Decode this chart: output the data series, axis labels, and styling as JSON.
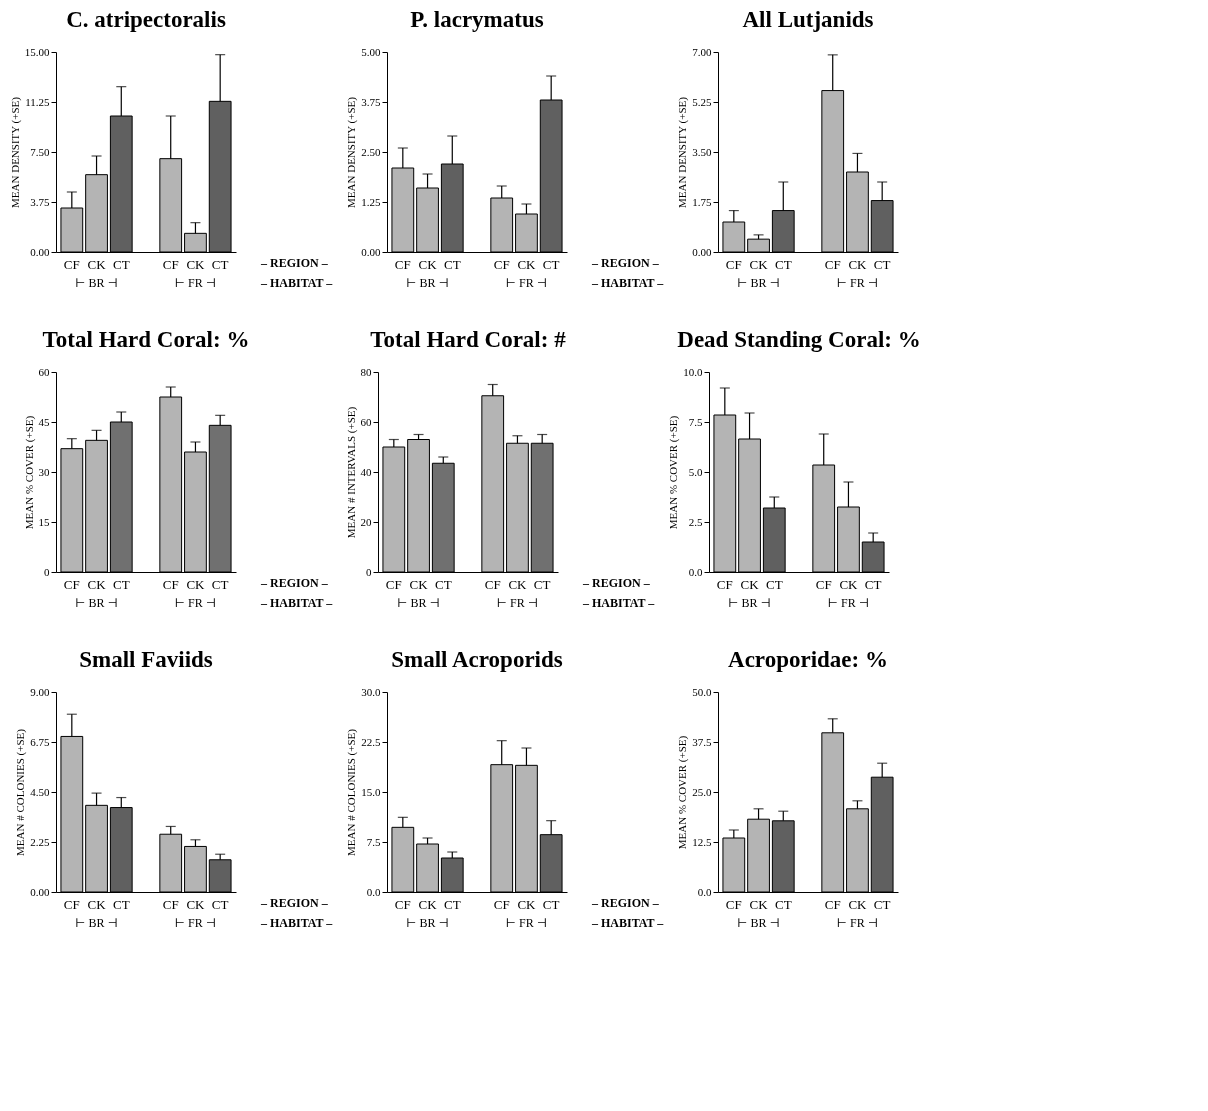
{
  "chart_data": [
    {
      "type": "bar",
      "title": "C. atripectoralis",
      "ylabel": "MEAN DENSITY (+SE)",
      "categories": [
        "CF",
        "CK",
        "CT",
        "CF",
        "CK",
        "CT"
      ],
      "values": [
        3.3,
        5.8,
        10.2,
        7.0,
        1.4,
        11.3
      ],
      "colors": [
        "#b4b4b4",
        "#b4b4b4",
        "#606060",
        "#b4b4b4",
        "#b4b4b4",
        "#606060"
      ],
      "errors": [
        [
          3.3,
          4.5
        ],
        [
          5.8,
          7.2
        ],
        [
          10.2,
          12.4
        ],
        [
          7.0,
          10.2
        ],
        [
          1.4,
          2.2
        ],
        [
          11.3,
          14.8
        ]
      ],
      "ylim": [
        0,
        15
      ],
      "yticks": [
        {
          "value": 0,
          "label": "0.00"
        },
        3.75,
        {
          "value": 7.5,
          "label": "7.50"
        },
        11.25,
        {
          "value": 15,
          "label": "15.00"
        }
      ],
      "annotations": [
        "⊢ BR ⊣",
        "⊢ FR ⊣",
        "– REGION –",
        "– HABITAT –"
      ]
    },
    {
      "type": "bar",
      "title": "P. lacrymatus",
      "ylabel": "MEAN DENSITY (+SE)",
      "categories": [
        "CF",
        "CK",
        "CT",
        "CF",
        "CK",
        "CT"
      ],
      "values": [
        2.1,
        1.6,
        2.2,
        1.35,
        0.95,
        3.8
      ],
      "colors": [
        "#b4b4b4",
        "#b4b4b4",
        "#606060",
        "#b4b4b4",
        "#b4b4b4",
        "#606060"
      ],
      "errors": [
        [
          2.1,
          2.6
        ],
        [
          1.6,
          1.95
        ],
        [
          2.2,
          2.9
        ],
        [
          1.35,
          1.65
        ],
        [
          0.95,
          1.2
        ],
        [
          3.8,
          4.4
        ]
      ],
      "ylim": [
        0,
        5
      ],
      "yticks": [
        {
          "value": 0,
          "label": "0.00"
        },
        1.25,
        {
          "value": 2.5,
          "label": "2.50"
        },
        3.75,
        {
          "value": 5,
          "label": "5.00"
        }
      ],
      "annotations": [
        "⊢ BR ⊣",
        "⊢ FR ⊣",
        "– REGION –",
        "– HABITAT –"
      ]
    },
    {
      "type": "bar",
      "title": "All Lutjanids",
      "ylabel": "MEAN DENSITY (+SE)",
      "categories": [
        "CF",
        "CK",
        "CT",
        "CF",
        "CK",
        "CT"
      ],
      "values": [
        1.05,
        0.45,
        1.45,
        5.65,
        2.8,
        1.8
      ],
      "colors": [
        "#b4b4b4",
        "#b4b4b4",
        "#606060",
        "#b4b4b4",
        "#b4b4b4",
        "#606060"
      ],
      "errors": [
        [
          1.05,
          1.45
        ],
        [
          0.45,
          0.6
        ],
        [
          1.45,
          2.45
        ],
        [
          5.65,
          6.9
        ],
        [
          2.8,
          3.45
        ],
        [
          1.8,
          2.45
        ]
      ],
      "ylim": [
        0,
        7
      ],
      "yticks": [
        {
          "value": 0,
          "label": "0.00"
        },
        1.75,
        {
          "value": 3.5,
          "label": "3.50"
        },
        5.25,
        {
          "value": 7,
          "label": "7.00"
        }
      ],
      "annotations": [
        "⊢ BR ⊣",
        "⊢ FR ⊣"
      ]
    },
    {
      "type": "bar",
      "title": "Total Hard Coral: %",
      "ylabel": "MEAN % COVER (+SE)",
      "categories": [
        "CF",
        "CK",
        "CT",
        "CF",
        "CK",
        "CT"
      ],
      "values": [
        37,
        39.5,
        45,
        52.5,
        36,
        44
      ],
      "colors": [
        "#b4b4b4",
        "#b4b4b4",
        "#707070",
        "#b4b4b4",
        "#b4b4b4",
        "#707070"
      ],
      "errors": [
        [
          37,
          40
        ],
        [
          39.5,
          42.5
        ],
        [
          45,
          48
        ],
        [
          52.5,
          55.5
        ],
        [
          36,
          39
        ],
        [
          44,
          47
        ]
      ],
      "ylim": [
        0,
        60
      ],
      "yticks": [
        0,
        15,
        30,
        45,
        60
      ],
      "annotations": [
        "⊢ BR ⊣",
        "⊢ FR ⊣",
        "– REGION –",
        "– HABITAT –"
      ]
    },
    {
      "type": "bar",
      "title": "Total Hard Coral: #",
      "ylabel": "MEAN # INTERVALS (+SE)",
      "categories": [
        "CF",
        "CK",
        "CT",
        "CF",
        "CK",
        "CT"
      ],
      "values": [
        50,
        53,
        43.5,
        70.5,
        51.5,
        51.5
      ],
      "colors": [
        "#b4b4b4",
        "#b4b4b4",
        "#707070",
        "#b4b4b4",
        "#b4b4b4",
        "#707070"
      ],
      "errors": [
        [
          50,
          53
        ],
        [
          53,
          55
        ],
        [
          43.5,
          46
        ],
        [
          70.5,
          75
        ],
        [
          51.5,
          54.5
        ],
        [
          51.5,
          55
        ]
      ],
      "ylim": [
        0,
        80
      ],
      "yticks": [
        0,
        20,
        40,
        60,
        80
      ],
      "annotations": [
        "⊢ BR ⊣",
        "⊢ FR ⊣",
        "– REGION –",
        "– HABITAT –"
      ]
    },
    {
      "type": "bar",
      "title": "Dead Standing Coral: %",
      "ylabel": "MEAN % COVER (+SE)",
      "categories": [
        "CF",
        "CK",
        "CT",
        "CF",
        "CK",
        "CT"
      ],
      "values": [
        7.85,
        6.65,
        3.2,
        5.35,
        3.25,
        1.5
      ],
      "colors": [
        "#b4b4b4",
        "#b4b4b4",
        "#606060",
        "#b4b4b4",
        "#b4b4b4",
        "#606060"
      ],
      "errors": [
        [
          7.85,
          9.2
        ],
        [
          6.65,
          7.95
        ],
        [
          3.2,
          3.75
        ],
        [
          5.35,
          6.9
        ],
        [
          3.25,
          4.5
        ],
        [
          1.5,
          1.95
        ]
      ],
      "ylim": [
        0,
        10
      ],
      "yticks": [
        {
          "value": 0,
          "label": "0.0"
        },
        2.5,
        {
          "value": 5,
          "label": "5.0"
        },
        7.5,
        {
          "value": 10,
          "label": "10.0"
        }
      ],
      "annotations": [
        "⊢ BR ⊣",
        "⊢ FR ⊣"
      ]
    },
    {
      "type": "bar",
      "title": "Small Faviids",
      "ylabel": "MEAN # COLONIES (+SE)",
      "categories": [
        "CF",
        "CK",
        "CT",
        "CF",
        "CK",
        "CT"
      ],
      "values": [
        7.0,
        3.9,
        3.8,
        2.6,
        2.05,
        1.45
      ],
      "colors": [
        "#b4b4b4",
        "#b4b4b4",
        "#606060",
        "#b4b4b4",
        "#b4b4b4",
        "#606060"
      ],
      "errors": [
        [
          7.0,
          8.0
        ],
        [
          3.9,
          4.45
        ],
        [
          3.8,
          4.25
        ],
        [
          2.6,
          2.95
        ],
        [
          2.05,
          2.35
        ],
        [
          1.45,
          1.7
        ]
      ],
      "ylim": [
        0,
        9
      ],
      "yticks": [
        {
          "value": 0,
          "label": "0.00"
        },
        2.25,
        {
          "value": 4.5,
          "label": "4.50"
        },
        6.75,
        {
          "value": 9,
          "label": "9.00"
        }
      ],
      "annotations": [
        "⊢ BR ⊣",
        "⊢ FR ⊣",
        "– REGION –",
        "– HABITAT –"
      ]
    },
    {
      "type": "bar",
      "title": "Small Acroporids",
      "ylabel": "MEAN # COLONIES (+SE)",
      "categories": [
        "CF",
        "CK",
        "CT",
        "CF",
        "CK",
        "CT"
      ],
      "values": [
        9.7,
        7.2,
        5.1,
        19.1,
        19.0,
        8.6
      ],
      "colors": [
        "#b4b4b4",
        "#b4b4b4",
        "#606060",
        "#b4b4b4",
        "#b4b4b4",
        "#606060"
      ],
      "errors": [
        [
          9.7,
          11.2
        ],
        [
          7.2,
          8.1
        ],
        [
          5.1,
          6.0
        ],
        [
          19.1,
          22.7
        ],
        [
          19.0,
          21.6
        ],
        [
          8.6,
          10.7
        ]
      ],
      "ylim": [
        0,
        30
      ],
      "yticks": [
        {
          "value": 0,
          "label": "0.0"
        },
        7.5,
        {
          "value": 15,
          "label": "15.0"
        },
        22.5,
        {
          "value": 30,
          "label": "30.0"
        }
      ],
      "annotations": [
        "⊢ BR ⊣",
        "⊢ FR ⊣",
        "– REGION –",
        "– HABITAT –"
      ]
    },
    {
      "type": "bar",
      "title": "Acroporidae: %",
      "ylabel": "MEAN % COVER (+SE)",
      "categories": [
        "CF",
        "CK",
        "CT",
        "CF",
        "CK",
        "CT"
      ],
      "values": [
        13.5,
        18.2,
        17.8,
        39.8,
        20.8,
        28.7
      ],
      "colors": [
        "#b4b4b4",
        "#b4b4b4",
        "#606060",
        "#b4b4b4",
        "#b4b4b4",
        "#606060"
      ],
      "errors": [
        [
          13.5,
          15.5
        ],
        [
          18.2,
          20.8
        ],
        [
          17.8,
          20.2
        ],
        [
          39.8,
          43.3
        ],
        [
          20.8,
          22.8
        ],
        [
          28.7,
          32.2
        ]
      ],
      "ylim": [
        0,
        50
      ],
      "yticks": [
        {
          "value": 0,
          "label": "0.0"
        },
        12.5,
        {
          "value": 25,
          "label": "25.0"
        },
        37.5,
        {
          "value": 50,
          "label": "50.0"
        }
      ],
      "annotations": [
        "⊢ BR ⊣",
        "⊢ FR ⊣"
      ]
    }
  ]
}
